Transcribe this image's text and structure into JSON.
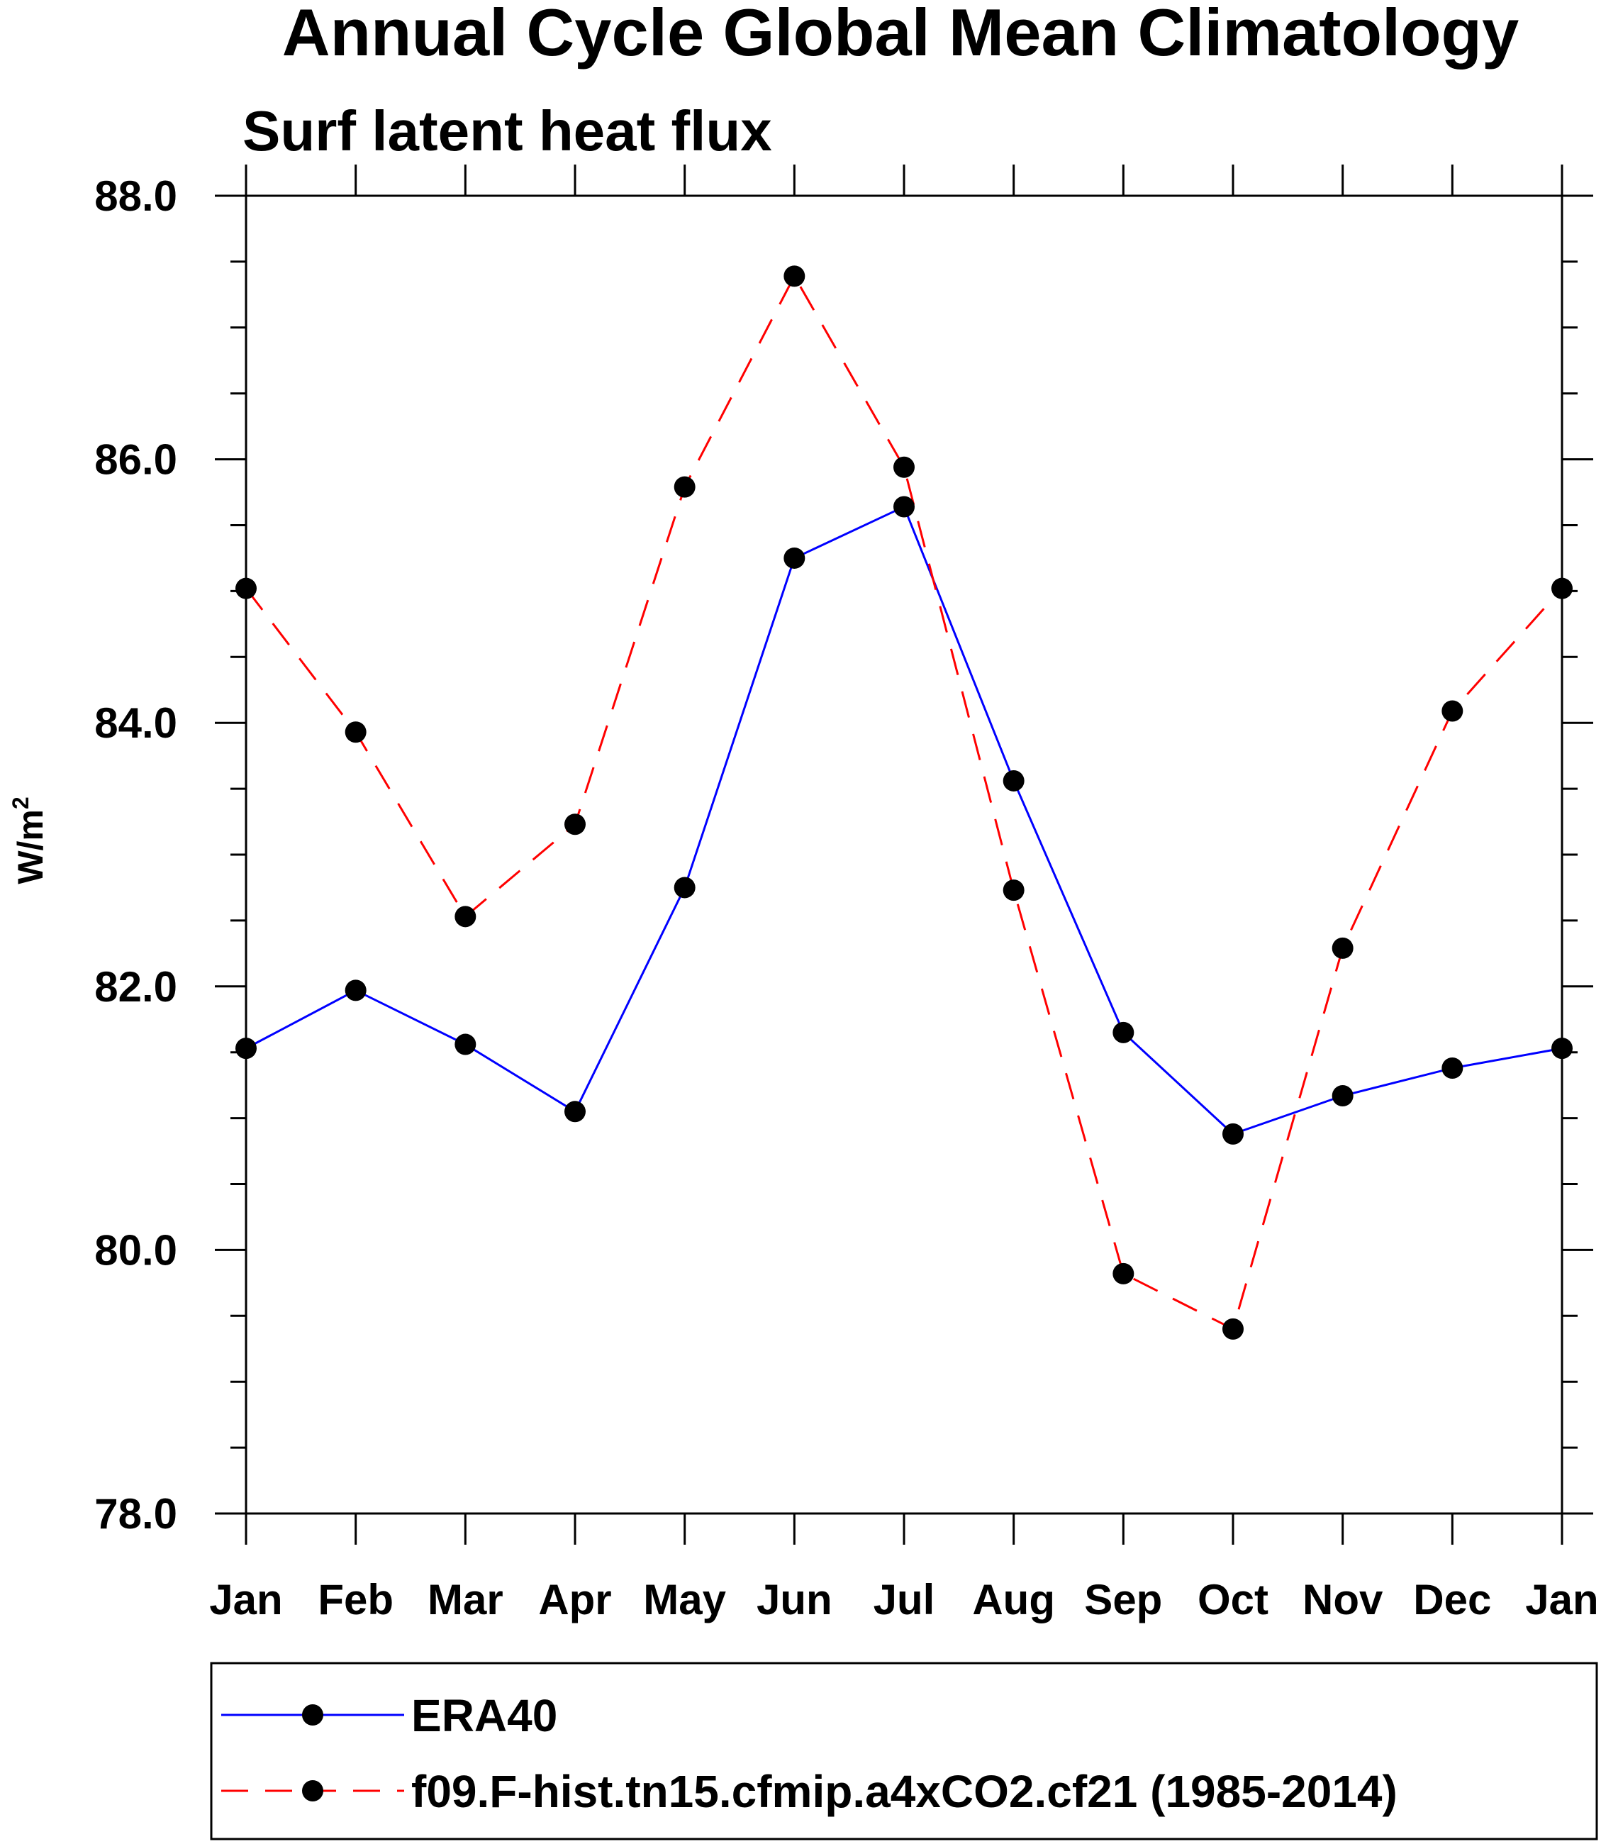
{
  "chart_data": {
    "type": "line",
    "title": "Annual Cycle Global Mean Climatology",
    "subtitle": "Surf latent heat flux",
    "ylabel_base": "W/m",
    "ylabel_sup": "2",
    "xlabel": "",
    "categories": [
      "Jan",
      "Feb",
      "Mar",
      "Apr",
      "May",
      "Jun",
      "Jul",
      "Aug",
      "Sep",
      "Oct",
      "Nov",
      "Dec",
      "Jan"
    ],
    "ylim": [
      78.0,
      88.0
    ],
    "yticks": [
      "88.0",
      "86.0",
      "84.0",
      "82.0",
      "80.0",
      "78.0"
    ],
    "ytick_values": [
      88,
      86,
      84,
      82,
      80,
      78
    ],
    "grid": false,
    "legend_position": "bottom",
    "series": [
      {
        "name": "ERA40",
        "color": "#0000ff",
        "style": "solid",
        "values": [
          81.53,
          81.97,
          81.56,
          81.05,
          82.75,
          85.25,
          85.64,
          83.56,
          81.65,
          80.88,
          81.17,
          81.38,
          81.53
        ]
      },
      {
        "name": "f09.F-hist.tn15.cfmip.a4xCO2.cf21 (1985-2014)",
        "color": "#ff0000",
        "style": "dashed",
        "values": [
          85.02,
          83.93,
          82.53,
          83.23,
          85.79,
          87.39,
          85.94,
          82.73,
          79.82,
          79.4,
          82.29,
          84.09,
          85.02
        ]
      }
    ]
  }
}
